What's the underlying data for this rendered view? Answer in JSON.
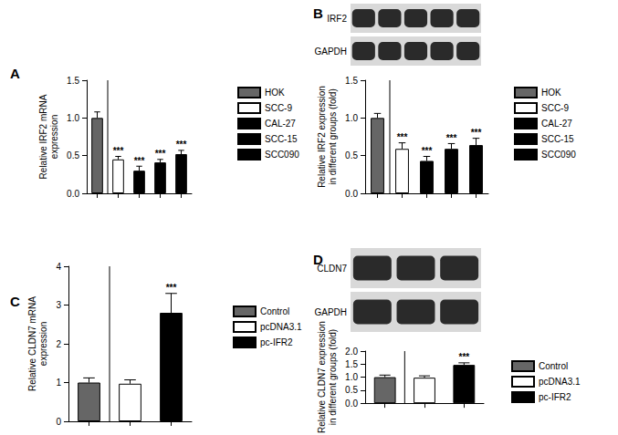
{
  "chart_data": [
    {
      "type": "bar",
      "title": "A",
      "ylabel": "Relative IRF2 mRNA\nexpression",
      "categories": [
        "HOK",
        "SCC-9",
        "CAL-27",
        "SCC-15",
        "SCC090"
      ],
      "values": [
        1.0,
        0.45,
        0.3,
        0.41,
        0.52
      ],
      "errors": [
        0.08,
        0.04,
        0.06,
        0.04,
        0.05
      ],
      "significance": [
        null,
        "***",
        "***",
        "***",
        "***"
      ],
      "colors": [
        "#666666",
        "#ffffff",
        "#000000",
        "#000000",
        "#000000"
      ],
      "ylim": [
        0,
        1.5
      ],
      "yticks": [
        {
          "value": 0,
          "label": "0.0"
        },
        0.5,
        {
          "value": 1,
          "label": "1.0"
        },
        1.5
      ],
      "tick_labels": "y",
      "grid": false,
      "legend": "right"
    },
    {
      "type": "bar",
      "title": "B",
      "ylabel": "Relative IRF2 expression\nin different groups (fold)",
      "blot_labels": [
        "IRF2",
        "GAPDH"
      ],
      "categories": [
        "HOK",
        "SCC-9",
        "CAL-27",
        "SCC-15",
        "SCC090"
      ],
      "values": [
        1.0,
        0.59,
        0.43,
        0.59,
        0.64
      ],
      "errors": [
        0.06,
        0.08,
        0.06,
        0.07,
        0.09
      ],
      "significance": [
        null,
        "***",
        "***",
        "***",
        "***"
      ],
      "colors": [
        "#666666",
        "#ffffff",
        "#000000",
        "#000000",
        "#000000"
      ],
      "ylim": [
        0,
        1.5
      ],
      "yticks": [
        {
          "value": 0,
          "label": "0.0"
        },
        0.5,
        {
          "value": 1,
          "label": "1.0"
        },
        1.5
      ],
      "tick_labels": "y",
      "grid": false,
      "legend": "right"
    },
    {
      "type": "bar",
      "title": "C",
      "ylabel": "Relative CLDN7 mRNA\nexpression",
      "categories": [
        "Control",
        "pcDNA3.1",
        "pc-IFR2"
      ],
      "values": [
        1.0,
        0.97,
        2.8
      ],
      "errors": [
        0.12,
        0.1,
        0.5
      ],
      "significance": [
        null,
        null,
        "***"
      ],
      "colors": [
        "#666666",
        "#ffffff",
        "#000000"
      ],
      "ylim": [
        0,
        4
      ],
      "yticks": [
        0,
        1,
        2,
        3,
        4
      ],
      "tick_labels": "y",
      "grid": false,
      "legend": "right"
    },
    {
      "type": "bar",
      "title": "D",
      "ylabel": "Relative CLDN7 expression\nin different groups (fold)",
      "blot_labels": [
        "CLDN7",
        "GAPDH"
      ],
      "categories": [
        "Control",
        "pcDNA3.1",
        "pc-IFR2"
      ],
      "values": [
        1.0,
        0.98,
        1.47
      ],
      "errors": [
        0.08,
        0.07,
        0.08
      ],
      "significance": [
        null,
        null,
        "***"
      ],
      "colors": [
        "#666666",
        "#ffffff",
        "#000000"
      ],
      "ylim": [
        0,
        2.0
      ],
      "yticks": [
        {
          "value": 0,
          "label": "0.0"
        },
        0.5,
        {
          "value": 1,
          "label": "1.0"
        },
        1.5,
        {
          "value": 2,
          "label": "2.0"
        }
      ],
      "tick_labels": "y",
      "grid": false,
      "legend": "right"
    }
  ]
}
